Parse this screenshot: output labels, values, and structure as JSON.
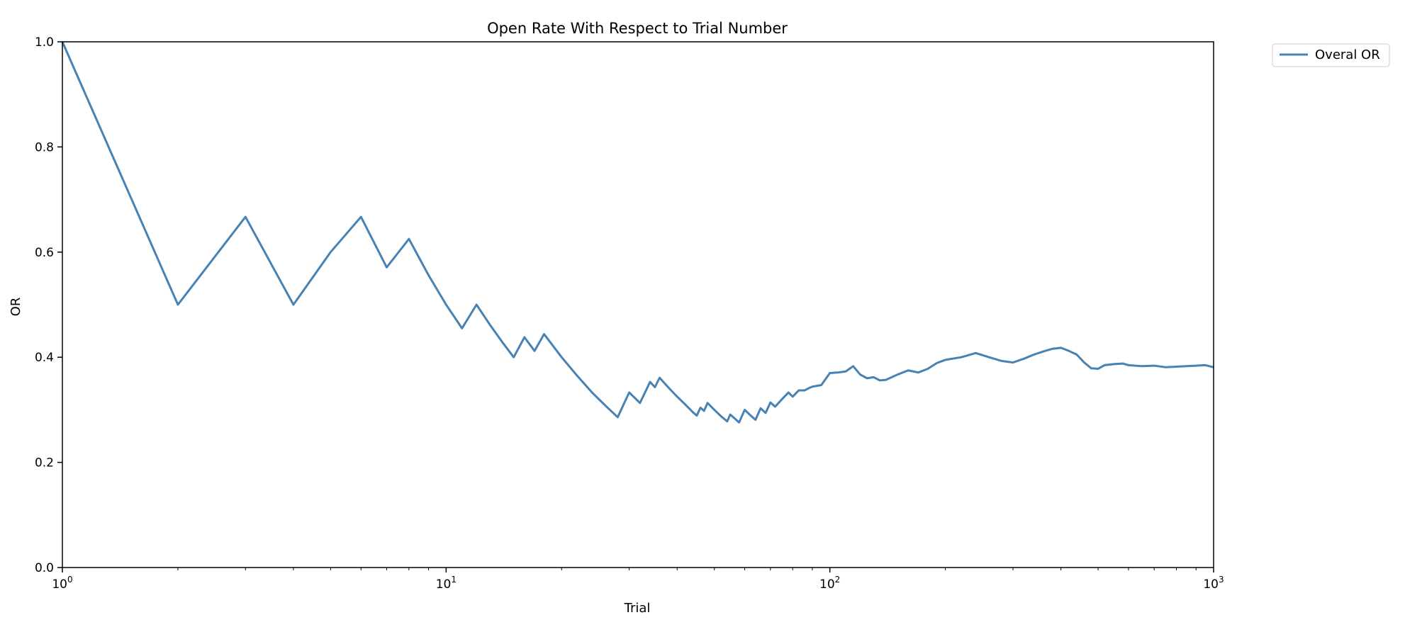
{
  "chart_data": {
    "type": "line",
    "title": "Open Rate With Respect to Trial Number",
    "xlabel": "Trial",
    "ylabel": "OR",
    "xscale": "log",
    "xlim": [
      1,
      1000
    ],
    "ylim": [
      0.0,
      1.0
    ],
    "xticks": [
      {
        "value": 1,
        "base": "10",
        "exp": "0"
      },
      {
        "value": 10,
        "base": "10",
        "exp": "1"
      },
      {
        "value": 100,
        "base": "10",
        "exp": "2"
      },
      {
        "value": 1000,
        "base": "10",
        "exp": "3"
      }
    ],
    "yticks": [
      "0.0",
      "0.2",
      "0.4",
      "0.6",
      "0.8",
      "1.0"
    ],
    "grid": false,
    "legend_position": "outside-top-right",
    "series": [
      {
        "name": "Overal OR",
        "color": "#4682b4",
        "x": [
          1,
          2,
          3,
          4,
          5,
          6,
          7,
          8,
          9,
          10,
          11,
          12,
          13,
          14,
          15,
          16,
          17,
          18,
          20,
          22,
          24,
          26,
          28,
          30,
          32,
          34,
          35,
          36,
          38,
          40,
          42,
          44,
          45,
          46,
          47,
          48,
          50,
          52,
          54,
          55,
          56,
          58,
          60,
          62,
          64,
          66,
          68,
          70,
          72,
          75,
          78,
          80,
          83,
          86,
          88,
          90,
          95,
          100,
          105,
          110,
          115,
          120,
          125,
          130,
          135,
          140,
          150,
          160,
          170,
          180,
          190,
          200,
          220,
          240,
          260,
          280,
          300,
          320,
          340,
          360,
          380,
          400,
          420,
          440,
          460,
          480,
          500,
          520,
          550,
          580,
          600,
          650,
          700,
          750,
          800,
          850,
          900,
          950,
          1000
        ],
        "y": [
          1.0,
          0.5,
          0.667,
          0.5,
          0.6,
          0.667,
          0.571,
          0.625,
          0.556,
          0.5,
          0.455,
          0.5,
          0.462,
          0.429,
          0.4,
          0.438,
          0.412,
          0.444,
          0.4,
          0.364,
          0.333,
          0.308,
          0.286,
          0.333,
          0.313,
          0.353,
          0.343,
          0.361,
          0.342,
          0.325,
          0.31,
          0.295,
          0.289,
          0.304,
          0.298,
          0.313,
          0.3,
          0.288,
          0.278,
          0.291,
          0.286,
          0.276,
          0.3,
          0.29,
          0.281,
          0.303,
          0.294,
          0.314,
          0.306,
          0.32,
          0.333,
          0.325,
          0.337,
          0.337,
          0.341,
          0.344,
          0.347,
          0.37,
          0.371,
          0.373,
          0.383,
          0.367,
          0.36,
          0.362,
          0.356,
          0.357,
          0.367,
          0.375,
          0.371,
          0.378,
          0.389,
          0.395,
          0.4,
          0.408,
          0.4,
          0.393,
          0.39,
          0.397,
          0.405,
          0.411,
          0.416,
          0.418,
          0.412,
          0.405,
          0.39,
          0.379,
          0.378,
          0.385,
          0.387,
          0.388,
          0.385,
          0.383,
          0.384,
          0.381,
          0.382,
          0.383,
          0.384,
          0.385,
          0.381
        ]
      }
    ]
  }
}
